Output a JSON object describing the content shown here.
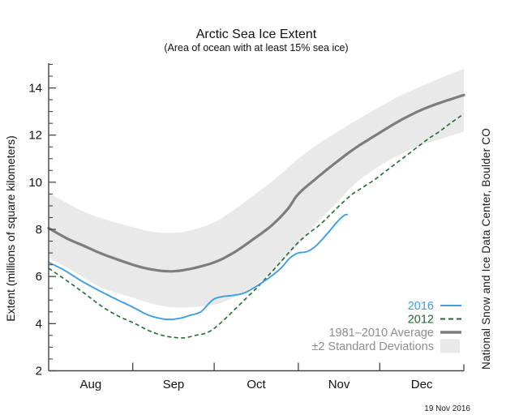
{
  "header": {
    "title": "Arctic Sea Ice Extent",
    "subtitle": "(Area of ocean with at least 15% sea ice)"
  },
  "watermark": "National Snow and Ice Data Center, Boulder CO",
  "date_stamp": "19 Nov 2016",
  "colors": {
    "series_2016": "#3c9fe3",
    "series_2012": "#1e6b30",
    "average": "#7d7d7d",
    "band": "#e9e9e9",
    "legend_gray_text": "#8e8e8e",
    "axis": "#444444"
  },
  "chart_data": {
    "type": "line",
    "title": "Arctic Sea Ice Extent",
    "subtitle": "(Area of ocean with at least 15% sea ice)",
    "ylabel": "Extent (millions of square kilometers)",
    "xlabel": "",
    "ylim": [
      2,
      15.05
    ],
    "yticks": [
      2,
      4,
      6,
      8,
      10,
      12,
      14
    ],
    "y_minor_step": 0.5,
    "grid": false,
    "legend_position": "lower right",
    "x_unit": "days since Aug 1",
    "x_range_days": [
      0,
      153
    ],
    "month_labels": [
      "Aug",
      "Sep",
      "Oct",
      "Nov",
      "Dec"
    ],
    "month_label_days": [
      15.5,
      46,
      76.5,
      107,
      137.5
    ],
    "month_tick_days": [
      31,
      61,
      92,
      122
    ],
    "end_tick_day": 153,
    "series": [
      {
        "name": "2016",
        "style": "solid",
        "color": "#3c9fe3",
        "x": [
          0,
          6,
          13,
          22,
          31,
          36,
          40,
          44,
          48,
          52,
          56,
          59,
          61,
          64,
          68,
          72,
          76,
          80,
          83,
          86,
          89,
          92,
          95,
          98,
          101,
          104,
          107,
          109,
          110
        ],
        "values": [
          6.6,
          6.25,
          5.75,
          5.2,
          4.7,
          4.4,
          4.25,
          4.18,
          4.22,
          4.35,
          4.5,
          4.85,
          5.05,
          5.15,
          5.2,
          5.3,
          5.55,
          5.85,
          6.1,
          6.4,
          6.8,
          7.0,
          7.05,
          7.25,
          7.6,
          8.0,
          8.4,
          8.6,
          8.63
        ]
      },
      {
        "name": "2012",
        "style": "dashed",
        "color": "#1e6b30",
        "x": [
          0,
          7,
          13,
          20,
          26,
          31,
          37,
          42,
          46,
          50,
          54,
          58,
          61,
          65,
          69,
          73,
          77,
          81,
          85,
          88,
          92,
          96,
          100,
          104,
          108,
          112,
          116,
          120,
          124,
          128,
          132,
          136,
          140,
          144,
          148,
          153
        ],
        "values": [
          6.35,
          5.8,
          5.3,
          4.7,
          4.3,
          4.05,
          3.7,
          3.5,
          3.42,
          3.4,
          3.5,
          3.6,
          3.8,
          4.2,
          4.65,
          5.1,
          5.55,
          6.05,
          6.55,
          6.95,
          7.45,
          7.85,
          8.2,
          8.65,
          9.1,
          9.5,
          9.8,
          10.1,
          10.45,
          10.8,
          11.15,
          11.5,
          11.85,
          12.15,
          12.5,
          12.9
        ]
      },
      {
        "name": "1981-2010 Average",
        "style": "solid-thick",
        "color": "#7d7d7d",
        "x": [
          0,
          7,
          13,
          20,
          31,
          38,
          45,
          52,
          61,
          68,
          75,
          82,
          88,
          92,
          99,
          106,
          113,
          122,
          130,
          138,
          145,
          153
        ],
        "values": [
          8.05,
          7.6,
          7.3,
          6.95,
          6.5,
          6.3,
          6.22,
          6.32,
          6.6,
          7.0,
          7.55,
          8.15,
          8.85,
          9.5,
          10.2,
          10.85,
          11.45,
          12.1,
          12.65,
          13.1,
          13.4,
          13.7
        ]
      }
    ],
    "band": {
      "name": "±2 Standard Deviations",
      "color": "#e9e9e9",
      "x": [
        0,
        7,
        13,
        20,
        31,
        38,
        45,
        52,
        61,
        68,
        75,
        82,
        88,
        92,
        99,
        106,
        113,
        122,
        130,
        138,
        145,
        153
      ],
      "upper": [
        9.55,
        9.1,
        8.75,
        8.45,
        8.1,
        7.9,
        7.85,
        7.95,
        8.3,
        8.8,
        9.4,
        10.0,
        10.6,
        11.0,
        11.6,
        12.1,
        12.6,
        13.2,
        13.7,
        14.1,
        14.45,
        14.8
      ],
      "lower": [
        6.8,
        6.35,
        5.95,
        5.5,
        5.1,
        4.85,
        4.7,
        4.7,
        4.8,
        5.1,
        5.55,
        6.15,
        6.85,
        7.35,
        8.3,
        9.1,
        9.95,
        10.7,
        11.2,
        11.6,
        11.85,
        12.15
      ]
    },
    "legend": [
      {
        "label": "2016",
        "swatch": "line",
        "color": "#3c9fe3",
        "text_color": "#3c9fe3"
      },
      {
        "label": "2012",
        "swatch": "dashed-line",
        "color": "#1e6b30",
        "text_color": "#1e6b30"
      },
      {
        "label": "1981–2010 Average",
        "swatch": "thick-line",
        "color": "#7d7d7d",
        "text_color": "#8e8e8e"
      },
      {
        "label": "±2 Standard Deviations",
        "swatch": "box",
        "color": "#e9e9e9",
        "text_color": "#8e8e8e"
      }
    ]
  }
}
